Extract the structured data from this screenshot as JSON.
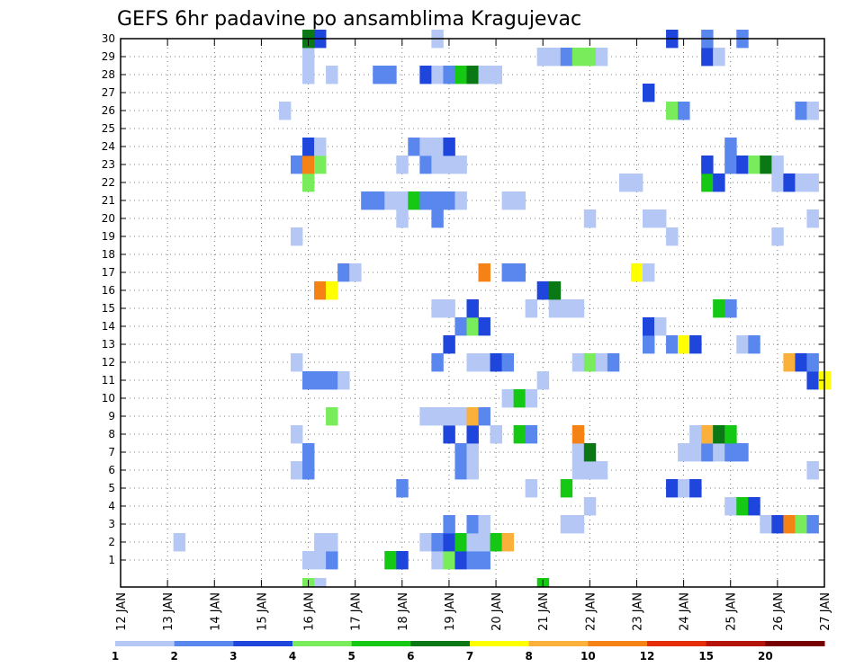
{
  "chart_data": {
    "type": "heatmap",
    "title": "GEFS 6hr padavine po ansamblima Kragujevac",
    "xlabel": "",
    "ylabel": "",
    "x_tick_labels": [
      "12 JAN",
      "13 JAN",
      "14 JAN",
      "15 JAN",
      "16 JAN",
      "17 JAN",
      "18 JAN",
      "19 JAN",
      "20 JAN",
      "21 JAN",
      "22 JAN",
      "23 JAN",
      "24 JAN",
      "25 JAN",
      "26 JAN",
      "27 JAN"
    ],
    "y_tick_labels": [
      "1",
      "2",
      "3",
      "4",
      "5",
      "6",
      "7",
      "8",
      "9",
      "10",
      "11",
      "12",
      "13",
      "14",
      "15",
      "16",
      "17",
      "18",
      "19",
      "20",
      "21",
      "22",
      "23",
      "24",
      "25",
      "26",
      "27",
      "28",
      "29",
      "30"
    ],
    "xlim_days": [
      0,
      15
    ],
    "ylim_members": [
      0,
      30
    ],
    "time_step_hours": 6,
    "grid": "dotted",
    "colorbar": {
      "position": "bottom",
      "tick_labels": [
        "1",
        "2",
        "3",
        "4",
        "5",
        "6",
        "7",
        "8",
        "10",
        "12",
        "15",
        "20"
      ],
      "colors": [
        "#b4c7f5",
        "#5a87ee",
        "#1e46dc",
        "#78ec5a",
        "#14c814",
        "#0a7814",
        "#ffff00",
        "#fbb03b",
        "#f58214",
        "#e62d0a",
        "#b4140a",
        "#780000"
      ]
    },
    "cells": [
      {
        "x": 13.25,
        "y": 2,
        "level": 1
      },
      {
        "x": 16.0,
        "y": 1,
        "level": 1
      },
      {
        "x": 16.25,
        "y": 1,
        "level": 1
      },
      {
        "x": 16.5,
        "y": 1,
        "level": 2
      },
      {
        "x": 16.25,
        "y": 2,
        "level": 1
      },
      {
        "x": 16.5,
        "y": 2,
        "level": 1
      },
      {
        "x": 17.75,
        "y": 1,
        "level": 5
      },
      {
        "x": 18.0,
        "y": 1,
        "level": 3
      },
      {
        "x": 18.75,
        "y": 1,
        "level": 1
      },
      {
        "x": 19.0,
        "y": 1,
        "level": 4
      },
      {
        "x": 19.25,
        "y": 1,
        "level": 3
      },
      {
        "x": 19.5,
        "y": 1,
        "level": 2
      },
      {
        "x": 19.75,
        "y": 1,
        "level": 2
      },
      {
        "x": 18.5,
        "y": 2,
        "level": 1
      },
      {
        "x": 18.75,
        "y": 2,
        "level": 2
      },
      {
        "x": 19.0,
        "y": 2,
        "level": 3
      },
      {
        "x": 19.25,
        "y": 2,
        "level": 5
      },
      {
        "x": 19.5,
        "y": 2,
        "level": 1
      },
      {
        "x": 19.75,
        "y": 2,
        "level": 1
      },
      {
        "x": 20.0,
        "y": 2,
        "level": 5
      },
      {
        "x": 20.25,
        "y": 2,
        "level": 8
      },
      {
        "x": 19.0,
        "y": 3,
        "level": 2
      },
      {
        "x": 19.5,
        "y": 3,
        "level": 2
      },
      {
        "x": 19.75,
        "y": 3,
        "level": 1
      },
      {
        "x": 21.5,
        "y": 3,
        "level": 1
      },
      {
        "x": 21.75,
        "y": 3,
        "level": 1
      },
      {
        "x": 25.75,
        "y": 3,
        "level": 1
      },
      {
        "x": 26.0,
        "y": 3,
        "level": 3
      },
      {
        "x": 26.25,
        "y": 3,
        "level": 9
      },
      {
        "x": 26.5,
        "y": 3,
        "level": 4
      },
      {
        "x": 26.75,
        "y": 3,
        "level": 2
      },
      {
        "x": 22.0,
        "y": 4,
        "level": 1
      },
      {
        "x": 25.0,
        "y": 4,
        "level": 1
      },
      {
        "x": 25.25,
        "y": 4,
        "level": 5
      },
      {
        "x": 25.5,
        "y": 4,
        "level": 3
      },
      {
        "x": 18.0,
        "y": 5,
        "level": 2
      },
      {
        "x": 20.75,
        "y": 5,
        "level": 1
      },
      {
        "x": 21.5,
        "y": 5,
        "level": 5
      },
      {
        "x": 23.75,
        "y": 5,
        "level": 3
      },
      {
        "x": 24.0,
        "y": 5,
        "level": 1
      },
      {
        "x": 24.25,
        "y": 5,
        "level": 3
      },
      {
        "x": 15.75,
        "y": 6,
        "level": 1
      },
      {
        "x": 16.0,
        "y": 6,
        "level": 2
      },
      {
        "x": 19.25,
        "y": 6,
        "level": 2
      },
      {
        "x": 19.5,
        "y": 6,
        "level": 1
      },
      {
        "x": 21.75,
        "y": 6,
        "level": 1
      },
      {
        "x": 22.0,
        "y": 6,
        "level": 1
      },
      {
        "x": 22.25,
        "y": 6,
        "level": 1
      },
      {
        "x": 26.75,
        "y": 6,
        "level": 1
      },
      {
        "x": 16.0,
        "y": 7,
        "level": 2
      },
      {
        "x": 19.25,
        "y": 7,
        "level": 2
      },
      {
        "x": 19.5,
        "y": 7,
        "level": 1
      },
      {
        "x": 21.75,
        "y": 7,
        "level": 1
      },
      {
        "x": 22.0,
        "y": 7,
        "level": 6
      },
      {
        "x": 24.0,
        "y": 7,
        "level": 1
      },
      {
        "x": 24.25,
        "y": 7,
        "level": 1
      },
      {
        "x": 24.5,
        "y": 7,
        "level": 2
      },
      {
        "x": 24.75,
        "y": 7,
        "level": 1
      },
      {
        "x": 25.0,
        "y": 7,
        "level": 2
      },
      {
        "x": 25.25,
        "y": 7,
        "level": 2
      },
      {
        "x": 15.75,
        "y": 8,
        "level": 1
      },
      {
        "x": 19.0,
        "y": 8,
        "level": 3
      },
      {
        "x": 19.5,
        "y": 8,
        "level": 3
      },
      {
        "x": 20.0,
        "y": 8,
        "level": 1
      },
      {
        "x": 20.5,
        "y": 8,
        "level": 5
      },
      {
        "x": 20.75,
        "y": 8,
        "level": 2
      },
      {
        "x": 21.75,
        "y": 8,
        "level": 9
      },
      {
        "x": 24.25,
        "y": 8,
        "level": 1
      },
      {
        "x": 24.5,
        "y": 8,
        "level": 8
      },
      {
        "x": 24.75,
        "y": 8,
        "level": 6
      },
      {
        "x": 25.0,
        "y": 8,
        "level": 5
      },
      {
        "x": 16.5,
        "y": 9,
        "level": 4
      },
      {
        "x": 18.5,
        "y": 9,
        "level": 1
      },
      {
        "x": 18.75,
        "y": 9,
        "level": 1
      },
      {
        "x": 19.0,
        "y": 9,
        "level": 1
      },
      {
        "x": 19.25,
        "y": 9,
        "level": 1
      },
      {
        "x": 19.5,
        "y": 9,
        "level": 8
      },
      {
        "x": 19.75,
        "y": 9,
        "level": 2
      },
      {
        "x": 20.25,
        "y": 10,
        "level": 1
      },
      {
        "x": 20.5,
        "y": 10,
        "level": 5
      },
      {
        "x": 20.75,
        "y": 10,
        "level": 1
      },
      {
        "x": 16.0,
        "y": 11,
        "level": 2
      },
      {
        "x": 16.25,
        "y": 11,
        "level": 2
      },
      {
        "x": 16.5,
        "y": 11,
        "level": 2
      },
      {
        "x": 16.75,
        "y": 11,
        "level": 1
      },
      {
        "x": 21.0,
        "y": 11,
        "level": 1
      },
      {
        "x": 26.75,
        "y": 11,
        "level": 3
      },
      {
        "x": 27.0,
        "y": 11,
        "level": 7
      },
      {
        "x": 15.75,
        "y": 12,
        "level": 1
      },
      {
        "x": 18.75,
        "y": 12,
        "level": 2
      },
      {
        "x": 19.5,
        "y": 12,
        "level": 1
      },
      {
        "x": 19.75,
        "y": 12,
        "level": 1
      },
      {
        "x": 20.0,
        "y": 12,
        "level": 3
      },
      {
        "x": 20.25,
        "y": 12,
        "level": 2
      },
      {
        "x": 21.75,
        "y": 12,
        "level": 1
      },
      {
        "x": 22.0,
        "y": 12,
        "level": 4
      },
      {
        "x": 22.25,
        "y": 12,
        "level": 1
      },
      {
        "x": 22.5,
        "y": 12,
        "level": 2
      },
      {
        "x": 26.25,
        "y": 12,
        "level": 8
      },
      {
        "x": 26.5,
        "y": 12,
        "level": 3
      },
      {
        "x": 26.75,
        "y": 12,
        "level": 2
      },
      {
        "x": 19.0,
        "y": 13,
        "level": 3
      },
      {
        "x": 23.25,
        "y": 13,
        "level": 2
      },
      {
        "x": 23.75,
        "y": 13,
        "level": 2
      },
      {
        "x": 24.0,
        "y": 13,
        "level": 7
      },
      {
        "x": 24.25,
        "y": 13,
        "level": 3
      },
      {
        "x": 25.25,
        "y": 13,
        "level": 1
      },
      {
        "x": 25.5,
        "y": 13,
        "level": 2
      },
      {
        "x": 19.25,
        "y": 14,
        "level": 2
      },
      {
        "x": 19.5,
        "y": 14,
        "level": 4
      },
      {
        "x": 19.75,
        "y": 14,
        "level": 3
      },
      {
        "x": 23.25,
        "y": 14,
        "level": 3
      },
      {
        "x": 23.5,
        "y": 14,
        "level": 1
      },
      {
        "x": 18.75,
        "y": 15,
        "level": 1
      },
      {
        "x": 19.0,
        "y": 15,
        "level": 1
      },
      {
        "x": 19.5,
        "y": 15,
        "level": 3
      },
      {
        "x": 20.75,
        "y": 15,
        "level": 1
      },
      {
        "x": 21.25,
        "y": 15,
        "level": 1
      },
      {
        "x": 21.5,
        "y": 15,
        "level": 1
      },
      {
        "x": 21.75,
        "y": 15,
        "level": 1
      },
      {
        "x": 24.75,
        "y": 15,
        "level": 5
      },
      {
        "x": 25.0,
        "y": 15,
        "level": 2
      },
      {
        "x": 16.25,
        "y": 16,
        "level": 9
      },
      {
        "x": 16.5,
        "y": 16,
        "level": 7
      },
      {
        "x": 21.0,
        "y": 16,
        "level": 3
      },
      {
        "x": 21.25,
        "y": 16,
        "level": 6
      },
      {
        "x": 16.75,
        "y": 17,
        "level": 2
      },
      {
        "x": 17.0,
        "y": 17,
        "level": 1
      },
      {
        "x": 19.75,
        "y": 17,
        "level": 9
      },
      {
        "x": 20.25,
        "y": 17,
        "level": 2
      },
      {
        "x": 20.5,
        "y": 17,
        "level": 2
      },
      {
        "x": 23.0,
        "y": 17,
        "level": 7
      },
      {
        "x": 23.25,
        "y": 17,
        "level": 1
      },
      {
        "x": 15.75,
        "y": 19,
        "level": 1
      },
      {
        "x": 23.75,
        "y": 19,
        "level": 1
      },
      {
        "x": 26.0,
        "y": 19,
        "level": 1
      },
      {
        "x": 18.0,
        "y": 20,
        "level": 1
      },
      {
        "x": 18.75,
        "y": 20,
        "level": 2
      },
      {
        "x": 22.0,
        "y": 20,
        "level": 1
      },
      {
        "x": 23.25,
        "y": 20,
        "level": 1
      },
      {
        "x": 23.5,
        "y": 20,
        "level": 1
      },
      {
        "x": 26.75,
        "y": 20,
        "level": 1
      },
      {
        "x": 17.25,
        "y": 21,
        "level": 2
      },
      {
        "x": 17.5,
        "y": 21,
        "level": 2
      },
      {
        "x": 17.75,
        "y": 21,
        "level": 1
      },
      {
        "x": 18.0,
        "y": 21,
        "level": 1
      },
      {
        "x": 18.25,
        "y": 21,
        "level": 5
      },
      {
        "x": 18.5,
        "y": 21,
        "level": 2
      },
      {
        "x": 18.75,
        "y": 21,
        "level": 2
      },
      {
        "x": 19.0,
        "y": 21,
        "level": 2
      },
      {
        "x": 19.25,
        "y": 21,
        "level": 1
      },
      {
        "x": 20.25,
        "y": 21,
        "level": 1
      },
      {
        "x": 20.5,
        "y": 21,
        "level": 1
      },
      {
        "x": 16.0,
        "y": 22,
        "level": 4
      },
      {
        "x": 22.75,
        "y": 22,
        "level": 1
      },
      {
        "x": 23.0,
        "y": 22,
        "level": 1
      },
      {
        "x": 24.5,
        "y": 22,
        "level": 5
      },
      {
        "x": 24.75,
        "y": 22,
        "level": 3
      },
      {
        "x": 26.0,
        "y": 22,
        "level": 1
      },
      {
        "x": 26.25,
        "y": 22,
        "level": 3
      },
      {
        "x": 26.5,
        "y": 22,
        "level": 1
      },
      {
        "x": 26.75,
        "y": 22,
        "level": 1
      },
      {
        "x": 15.75,
        "y": 23,
        "level": 2
      },
      {
        "x": 16.0,
        "y": 23,
        "level": 9
      },
      {
        "x": 16.25,
        "y": 23,
        "level": 4
      },
      {
        "x": 18.0,
        "y": 23,
        "level": 1
      },
      {
        "x": 18.5,
        "y": 23,
        "level": 2
      },
      {
        "x": 18.75,
        "y": 23,
        "level": 1
      },
      {
        "x": 19.0,
        "y": 23,
        "level": 1
      },
      {
        "x": 19.25,
        "y": 23,
        "level": 1
      },
      {
        "x": 24.5,
        "y": 23,
        "level": 3
      },
      {
        "x": 25.0,
        "y": 23,
        "level": 2
      },
      {
        "x": 25.25,
        "y": 23,
        "level": 3
      },
      {
        "x": 25.5,
        "y": 23,
        "level": 4
      },
      {
        "x": 25.75,
        "y": 23,
        "level": 6
      },
      {
        "x": 26.0,
        "y": 23,
        "level": 1
      },
      {
        "x": 16.0,
        "y": 24,
        "level": 3
      },
      {
        "x": 16.25,
        "y": 24,
        "level": 1
      },
      {
        "x": 18.25,
        "y": 24,
        "level": 2
      },
      {
        "x": 18.5,
        "y": 24,
        "level": 1
      },
      {
        "x": 18.75,
        "y": 24,
        "level": 1
      },
      {
        "x": 19.0,
        "y": 24,
        "level": 3
      },
      {
        "x": 25.0,
        "y": 24,
        "level": 2
      },
      {
        "x": 15.5,
        "y": 26,
        "level": 1
      },
      {
        "x": 23.75,
        "y": 26,
        "level": 4
      },
      {
        "x": 24.0,
        "y": 26,
        "level": 2
      },
      {
        "x": 26.5,
        "y": 26,
        "level": 2
      },
      {
        "x": 26.75,
        "y": 26,
        "level": 1
      },
      {
        "x": 23.25,
        "y": 27,
        "level": 3
      },
      {
        "x": 16.0,
        "y": 28,
        "level": 1
      },
      {
        "x": 16.5,
        "y": 28,
        "level": 1
      },
      {
        "x": 17.5,
        "y": 28,
        "level": 2
      },
      {
        "x": 17.75,
        "y": 28,
        "level": 2
      },
      {
        "x": 18.5,
        "y": 28,
        "level": 3
      },
      {
        "x": 18.75,
        "y": 28,
        "level": 1
      },
      {
        "x": 19.0,
        "y": 28,
        "level": 2
      },
      {
        "x": 19.25,
        "y": 28,
        "level": 5
      },
      {
        "x": 19.5,
        "y": 28,
        "level": 6
      },
      {
        "x": 19.75,
        "y": 28,
        "level": 1
      },
      {
        "x": 20.0,
        "y": 28,
        "level": 1
      },
      {
        "x": 16.0,
        "y": 29,
        "level": 1
      },
      {
        "x": 21.0,
        "y": 29,
        "level": 1
      },
      {
        "x": 21.25,
        "y": 29,
        "level": 1
      },
      {
        "x": 21.5,
        "y": 29,
        "level": 2
      },
      {
        "x": 21.75,
        "y": 29,
        "level": 4
      },
      {
        "x": 22.0,
        "y": 29,
        "level": 4
      },
      {
        "x": 22.25,
        "y": 29,
        "level": 1
      },
      {
        "x": 24.5,
        "y": 29,
        "level": 3
      },
      {
        "x": 24.75,
        "y": 29,
        "level": 1
      },
      {
        "x": 16.0,
        "y": 30,
        "level": 6
      },
      {
        "x": 16.25,
        "y": 30,
        "level": 3
      },
      {
        "x": 18.75,
        "y": 30,
        "level": 1
      },
      {
        "x": 23.75,
        "y": 30,
        "level": 3
      },
      {
        "x": 24.5,
        "y": 30,
        "level": 2
      },
      {
        "x": 25.25,
        "y": 30,
        "level": 2
      }
    ],
    "partial_cells_below_axis": [
      {
        "x": 16.0,
        "level": 4
      },
      {
        "x": 16.25,
        "level": 1
      },
      {
        "x": 21.0,
        "level": 5
      }
    ]
  }
}
